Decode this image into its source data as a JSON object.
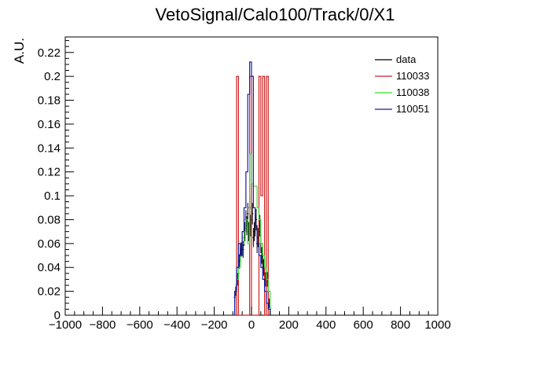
{
  "chart_data": {
    "type": "line",
    "title": "VetoSignal/Calo100/Track/0/X1",
    "xlabel": "",
    "ylabel": "A.U.",
    "xlim": [
      -1000,
      1000
    ],
    "ylim": [
      0,
      0.233
    ],
    "x_ticks": [
      -1000,
      -800,
      -600,
      -400,
      -200,
      0,
      200,
      400,
      600,
      800,
      1000
    ],
    "x_tick_labels": [
      "−1000",
      "−800",
      "−600",
      "−400",
      "−200",
      "0",
      "200",
      "400",
      "600",
      "800",
      "1000"
    ],
    "y_ticks": [
      0,
      0.02,
      0.04,
      0.06,
      0.08,
      0.1,
      0.12,
      0.14,
      0.16,
      0.18,
      0.2,
      0.22
    ],
    "y_tick_labels": [
      "0",
      "0.02",
      "0.04",
      "0.06",
      "0.08",
      "0.1",
      "0.12",
      "0.14",
      "0.16",
      "0.18",
      "0.2",
      "0.22"
    ],
    "grid": false,
    "legend_position": "top-right",
    "series": [
      {
        "name": "data",
        "color": "#000000",
        "style": "points-with-errors",
        "x": [
          -90,
          -85,
          -80,
          -75,
          -70,
          -65,
          -60,
          -55,
          -50,
          -45,
          -40,
          -35,
          -30,
          -25,
          -20,
          -15,
          -10,
          -5,
          0,
          5,
          10,
          15,
          20,
          25,
          30,
          35,
          40,
          45,
          50,
          55,
          60,
          65,
          70,
          75,
          80,
          85,
          90,
          95,
          100
        ],
        "y": [
          0.015,
          0.02,
          0.025,
          0.03,
          0.035,
          0.045,
          0.05,
          0.055,
          0.06,
          0.055,
          0.065,
          0.07,
          0.08,
          0.075,
          0.085,
          0.07,
          0.09,
          0.075,
          0.08,
          0.085,
          0.065,
          0.07,
          0.075,
          0.08,
          0.06,
          0.065,
          0.07,
          0.075,
          0.06,
          0.05,
          0.045,
          0.04,
          0.035,
          0.03,
          0.035,
          0.03,
          0.02,
          0.01,
          0.005
        ],
        "err": [
          0.004,
          0.004,
          0.005,
          0.005,
          0.005,
          0.006,
          0.006,
          0.006,
          0.007,
          0.007,
          0.007,
          0.008,
          0.008,
          0.008,
          0.009,
          0.008,
          0.01,
          0.009,
          0.009,
          0.009,
          0.008,
          0.008,
          0.009,
          0.009,
          0.008,
          0.008,
          0.008,
          0.009,
          0.008,
          0.007,
          0.007,
          0.007,
          0.006,
          0.006,
          0.006,
          0.006,
          0.005,
          0.004,
          0.003
        ]
      },
      {
        "name": "110033",
        "color": "#cc2222",
        "style": "step",
        "edges": [
          -80,
          -70,
          -10,
          0,
          40,
          50,
          60,
          70,
          80,
          90
        ],
        "values": [
          0.2,
          0,
          0.2,
          0,
          0.2,
          0.1,
          0.2,
          0,
          0.2
        ]
      },
      {
        "name": "110038",
        "color": "#33dd33",
        "style": "step",
        "edges": [
          -90,
          -80,
          -70,
          -60,
          -50,
          -40,
          -30,
          -20,
          -10,
          0,
          10,
          20,
          30,
          40,
          50,
          60,
          70,
          80,
          90,
          100
        ],
        "values": [
          0.02,
          0.03,
          0.04,
          0.05,
          0.06,
          0.07,
          0.08,
          0.06,
          0.135,
          0.11,
          0.108,
          0.108,
          0.09,
          0.08,
          0.06,
          0.05,
          0.04,
          0.03,
          0.02
        ]
      },
      {
        "name": "110051",
        "color": "#1a1aa8",
        "style": "step",
        "edges": [
          -90,
          -80,
          -70,
          -60,
          -50,
          -40,
          -30,
          -20,
          -10,
          0,
          10,
          20,
          30,
          40,
          50,
          60,
          70,
          80,
          90,
          100
        ],
        "values": [
          0.02,
          0.04,
          0.06,
          0.05,
          0.07,
          0.09,
          0.12,
          0.185,
          0.212,
          0.2,
          0.09,
          0.075,
          0.06,
          0.05,
          0.04,
          0.03,
          0.02,
          0.01,
          0.005
        ]
      }
    ]
  }
}
